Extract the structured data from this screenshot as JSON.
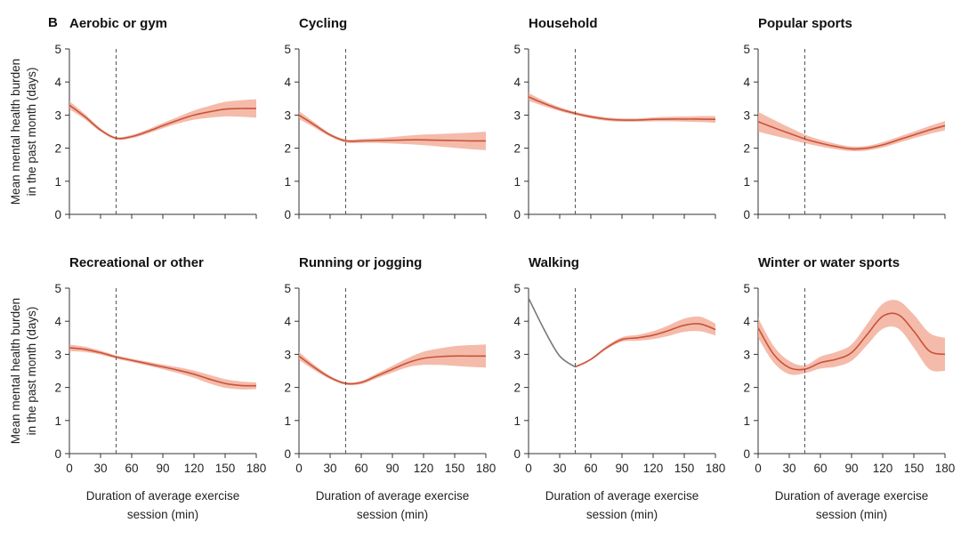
{
  "panel_label": "B",
  "y_axis_label": [
    "Mean mental health burden",
    "in the past month (days)"
  ],
  "x_axis_label": [
    "Duration of average exercise",
    "session (min)"
  ],
  "x_ticks": [
    0,
    30,
    60,
    90,
    120,
    150,
    180
  ],
  "y_ticks": [
    0,
    1,
    2,
    3,
    4,
    5
  ],
  "reference_line_x": 45,
  "colors": {
    "line": "#c8533b",
    "band": "#f2a48e",
    "axis": "#333333",
    "ref": "#555555",
    "walking_early": "#777777"
  },
  "chart_data": [
    {
      "type": "line",
      "title": "Aerobic or gym",
      "xlim": [
        0,
        180
      ],
      "ylim": [
        0,
        5
      ],
      "x": [
        0,
        15,
        30,
        45,
        60,
        75,
        90,
        105,
        120,
        135,
        150,
        165,
        180
      ],
      "y": [
        3.3,
        2.95,
        2.55,
        2.3,
        2.35,
        2.5,
        2.68,
        2.85,
        3.0,
        3.1,
        3.18,
        3.2,
        3.2
      ],
      "band": [
        0.12,
        0.08,
        0.05,
        0.04,
        0.05,
        0.06,
        0.08,
        0.1,
        0.14,
        0.18,
        0.22,
        0.25,
        0.28
      ]
    },
    {
      "type": "line",
      "title": "Cycling",
      "xlim": [
        0,
        180
      ],
      "ylim": [
        0,
        5
      ],
      "x": [
        0,
        15,
        30,
        45,
        60,
        75,
        90,
        105,
        120,
        135,
        150,
        165,
        180
      ],
      "y": [
        3.0,
        2.7,
        2.4,
        2.22,
        2.22,
        2.23,
        2.24,
        2.25,
        2.25,
        2.24,
        2.23,
        2.22,
        2.22
      ],
      "band": [
        0.12,
        0.08,
        0.05,
        0.05,
        0.06,
        0.07,
        0.1,
        0.13,
        0.16,
        0.19,
        0.22,
        0.25,
        0.28
      ]
    },
    {
      "type": "line",
      "title": "Household",
      "xlim": [
        0,
        180
      ],
      "ylim": [
        0,
        5
      ],
      "x": [
        0,
        15,
        30,
        45,
        60,
        75,
        90,
        105,
        120,
        135,
        150,
        165,
        180
      ],
      "y": [
        3.55,
        3.35,
        3.18,
        3.05,
        2.95,
        2.88,
        2.85,
        2.85,
        2.87,
        2.88,
        2.88,
        2.88,
        2.87
      ],
      "band": [
        0.12,
        0.08,
        0.06,
        0.05,
        0.05,
        0.05,
        0.05,
        0.05,
        0.06,
        0.07,
        0.08,
        0.09,
        0.1
      ]
    },
    {
      "type": "line",
      "title": "Popular sports",
      "xlim": [
        0,
        180
      ],
      "ylim": [
        0,
        5
      ],
      "x": [
        0,
        15,
        30,
        45,
        60,
        75,
        90,
        105,
        120,
        135,
        150,
        165,
        180
      ],
      "y": [
        2.8,
        2.62,
        2.45,
        2.28,
        2.15,
        2.05,
        1.98,
        2.0,
        2.1,
        2.25,
        2.4,
        2.55,
        2.68
      ],
      "band": [
        0.3,
        0.24,
        0.18,
        0.13,
        0.1,
        0.08,
        0.07,
        0.07,
        0.08,
        0.09,
        0.1,
        0.12,
        0.14
      ]
    },
    {
      "type": "line",
      "title": "Recreational or other",
      "xlim": [
        0,
        180
      ],
      "ylim": [
        0,
        5
      ],
      "x": [
        0,
        15,
        30,
        45,
        60,
        75,
        90,
        105,
        120,
        135,
        150,
        165,
        180
      ],
      "y": [
        3.2,
        3.15,
        3.05,
        2.92,
        2.82,
        2.72,
        2.62,
        2.52,
        2.4,
        2.25,
        2.12,
        2.06,
        2.05
      ],
      "band": [
        0.1,
        0.08,
        0.06,
        0.05,
        0.05,
        0.06,
        0.07,
        0.09,
        0.11,
        0.13,
        0.13,
        0.12,
        0.1
      ]
    },
    {
      "type": "line",
      "title": "Running or jogging",
      "xlim": [
        0,
        180
      ],
      "ylim": [
        0,
        5
      ],
      "x": [
        0,
        15,
        30,
        45,
        60,
        75,
        90,
        105,
        120,
        135,
        150,
        165,
        180
      ],
      "y": [
        2.95,
        2.6,
        2.3,
        2.12,
        2.15,
        2.35,
        2.55,
        2.75,
        2.88,
        2.93,
        2.95,
        2.95,
        2.95
      ],
      "band": [
        0.12,
        0.08,
        0.05,
        0.04,
        0.05,
        0.07,
        0.1,
        0.14,
        0.2,
        0.25,
        0.3,
        0.33,
        0.35
      ]
    },
    {
      "type": "line",
      "title": "Walking",
      "xlim": [
        0,
        180
      ],
      "ylim": [
        0,
        5
      ],
      "x": [
        0,
        15,
        30,
        45,
        60,
        75,
        90,
        105,
        120,
        135,
        150,
        165,
        180
      ],
      "y": [
        4.7,
        3.75,
        2.95,
        2.62,
        2.85,
        3.2,
        3.45,
        3.5,
        3.58,
        3.72,
        3.88,
        3.92,
        3.75
      ],
      "band": [
        0.0,
        0.0,
        0.0,
        0.0,
        0.03,
        0.05,
        0.07,
        0.09,
        0.12,
        0.16,
        0.2,
        0.22,
        0.18
      ],
      "early_x_max": 45
    },
    {
      "type": "line",
      "title": "Winter or water sports",
      "xlim": [
        0,
        180
      ],
      "ylim": [
        0,
        5
      ],
      "x": [
        0,
        15,
        30,
        45,
        60,
        75,
        90,
        105,
        120,
        135,
        150,
        165,
        180
      ],
      "y": [
        3.8,
        3.0,
        2.6,
        2.55,
        2.75,
        2.85,
        3.05,
        3.6,
        4.15,
        4.2,
        3.7,
        3.1,
        3.0
      ],
      "band": [
        0.3,
        0.25,
        0.2,
        0.12,
        0.18,
        0.22,
        0.25,
        0.32,
        0.38,
        0.42,
        0.5,
        0.55,
        0.5
      ]
    }
  ]
}
